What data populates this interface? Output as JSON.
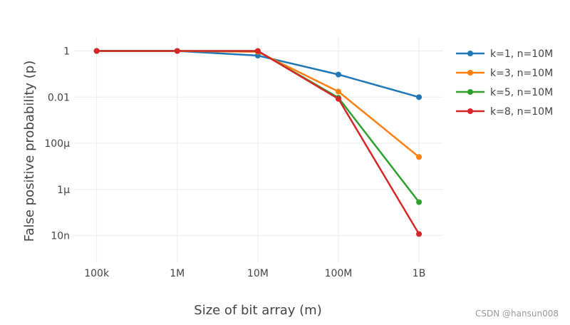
{
  "chart_data": {
    "type": "line",
    "title": "",
    "xlabel": "Size of bit array (m)",
    "ylabel": "False positive probability (p)",
    "x_scale": "log",
    "y_scale": "log",
    "categories": [
      "100k",
      "1M",
      "10M",
      "100M",
      "1B"
    ],
    "x": [
      100000,
      1000000,
      10000000,
      100000000,
      1000000000
    ],
    "y_ticks": [
      {
        "value": 1,
        "label": "1"
      },
      {
        "value": 0.01,
        "label": "0.01"
      },
      {
        "value": 0.0001,
        "label": "100μ"
      },
      {
        "value": 1e-06,
        "label": "1μ"
      },
      {
        "value": 1e-08,
        "label": "10n"
      }
    ],
    "ylim": [
      7e-10,
      4
    ],
    "grid": true,
    "legend_position": "top-right",
    "series": [
      {
        "name": "k=1, n=10M",
        "color": "#1f77b4",
        "values": [
          1.0,
          1.0,
          0.63,
          0.095,
          0.00995
        ]
      },
      {
        "name": "k=3, n=10M",
        "color": "#ff7f0e",
        "values": [
          1.0,
          1.0,
          0.92,
          0.0174,
          2.545e-05
        ]
      },
      {
        "name": "k=5, n=10M",
        "color": "#2ca02c",
        "values": [
          1.0,
          1.0,
          0.99,
          0.0094,
          2.832e-07
        ]
      },
      {
        "name": "k=8, n=10M",
        "color": "#d62728",
        "values": [
          1.0,
          1.0,
          1.0,
          0.0084,
          1.17e-08
        ]
      }
    ]
  },
  "watermark": "CSDN @hansun008"
}
